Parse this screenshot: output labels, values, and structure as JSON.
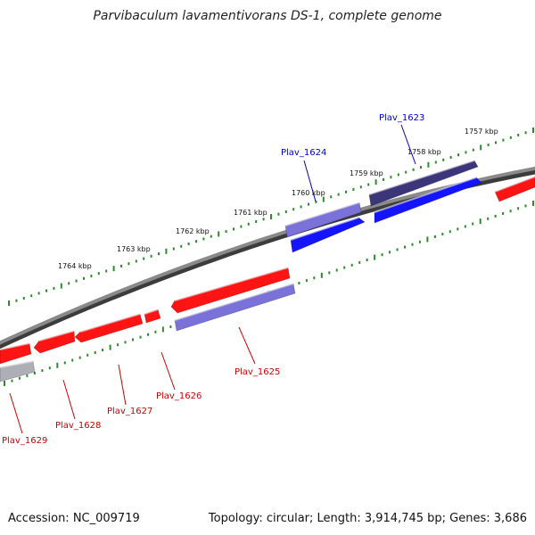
{
  "title": "Parvibaculum lavamentivorans DS-1, complete genome",
  "footer": {
    "accession": "Accession: NC_009719",
    "summary": "Topology: circular; Length: 3,914,745 bp; Genes: 3,686"
  },
  "colors": {
    "background": "#ffffff",
    "backbone": "#6f6f6f",
    "tick": "#2f8a2f",
    "reverse_strand": "#ff1414",
    "forward_strand": "#1414ff",
    "forward_light": "#7a72d8",
    "forward_dark": "#3b357a",
    "gray_gene": "#aeaeb6",
    "label_reverse": "#cc0000",
    "label_forward": "#0000bb"
  },
  "scale": {
    "unit": "kbp",
    "ticks": [
      {
        "label": "1757 kbp"
      },
      {
        "label": "1758 kbp"
      },
      {
        "label": "1759 kbp"
      },
      {
        "label": "1760 kbp"
      },
      {
        "label": "1761 kbp"
      },
      {
        "label": "1762 kbp"
      },
      {
        "label": "1763 kbp"
      },
      {
        "label": "1764 kbp"
      }
    ]
  },
  "genes": [
    {
      "id": "gene-right-edge",
      "strand": "reverse",
      "color": "reverse_strand",
      "label": ""
    },
    {
      "id": "Plav_1623",
      "strand": "forward",
      "color": "forward_dark",
      "label": "Plav_1623"
    },
    {
      "id": "gene-forward-blue-1",
      "strand": "forward",
      "color": "forward_strand",
      "label": ""
    },
    {
      "id": "Plav_1624",
      "strand": "forward",
      "color": "forward_light",
      "label": "Plav_1624"
    },
    {
      "id": "gene-forward-blue-2",
      "strand": "forward",
      "color": "forward_strand",
      "label": ""
    },
    {
      "id": "gene-reverse-red-1",
      "strand": "reverse",
      "color": "reverse_strand",
      "label": ""
    },
    {
      "id": "Plav_1625",
      "strand": "forward",
      "color": "forward_light",
      "label": "Plav_1625"
    },
    {
      "id": "Plav_1626",
      "strand": "reverse",
      "color": "reverse_strand",
      "label": "Plav_1626"
    },
    {
      "id": "Plav_1627",
      "strand": "reverse",
      "color": "reverse_strand",
      "label": "Plav_1627"
    },
    {
      "id": "Plav_1628",
      "strand": "reverse",
      "color": "reverse_strand",
      "label": "Plav_1628"
    },
    {
      "id": "Plav_1629",
      "strand": "reverse",
      "color": "reverse_strand",
      "label": "Plav_1629"
    },
    {
      "id": "gene-gray",
      "strand": "forward",
      "color": "gray_gene",
      "label": ""
    }
  ]
}
